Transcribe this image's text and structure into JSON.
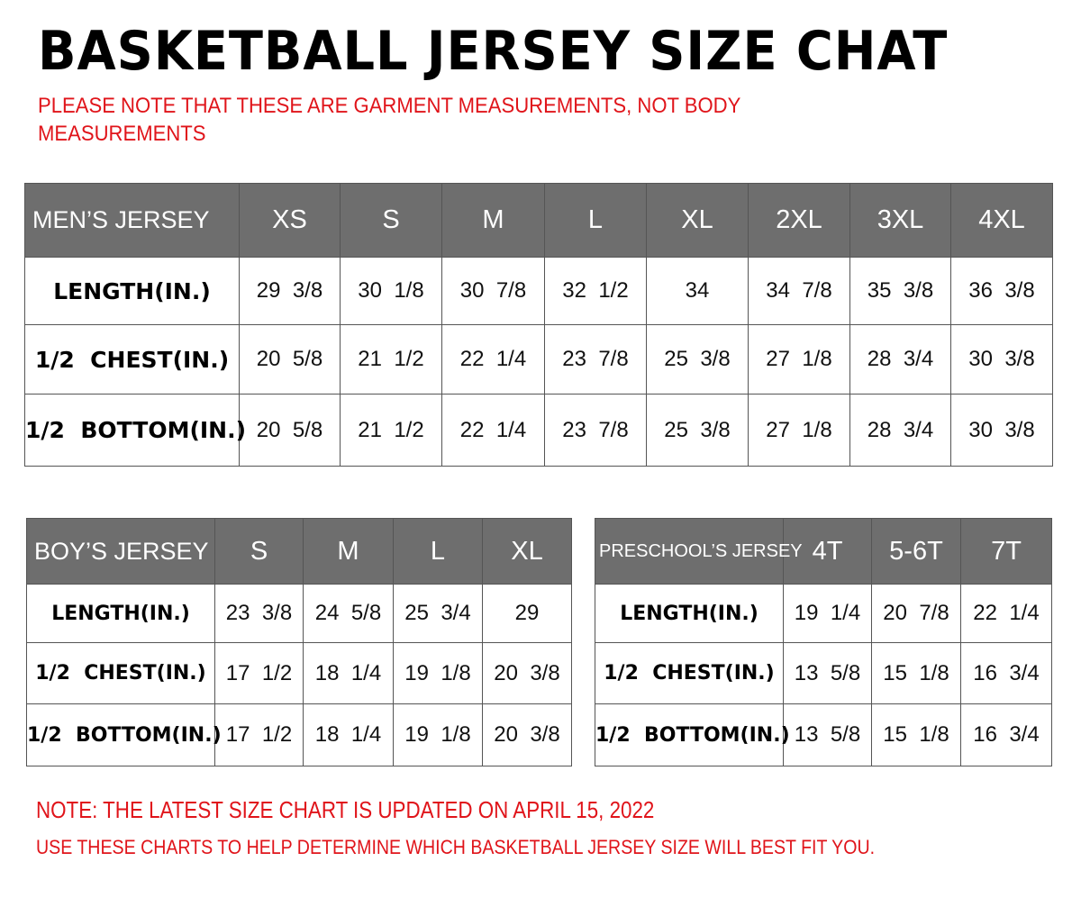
{
  "title": "BASKETBALL JERSEY SIZE CHAT",
  "note": [
    "PLEASE NOTE THAT THESE ARE GARMENT MEASUREMENTS, NOT BODY",
    "MEASUREMENTS"
  ],
  "colors": {
    "header_bg": "#6e6e6e",
    "note_red": "#e0141a"
  },
  "tables": {
    "men": {
      "header": [
        "MEN’S JERSEY",
        "XS",
        "S",
        "M",
        "L",
        "XL",
        "2XL",
        "3XL",
        "4XL"
      ],
      "rows": [
        [
          "LENGTH(IN.)",
          "29  3/8",
          "30  1/8",
          "30  7/8",
          "32  1/2",
          "34",
          "34  7/8",
          "35  3/8",
          "36  3/8"
        ],
        [
          "1/2  CHEST(IN.)",
          "20  5/8",
          "21  1/2",
          "22  1/4",
          "23  7/8",
          "25  3/8",
          "27  1/8",
          "28  3/4",
          "30  3/8"
        ],
        [
          "1/2  BOTTOM(IN.)",
          "20  5/8",
          "21  1/2",
          "22  1/4",
          "23  7/8",
          "25  3/8",
          "27  1/8",
          "28  3/4",
          "30  3/8"
        ]
      ]
    },
    "boy": {
      "header": [
        "BOY’S JERSEY",
        "S",
        "M",
        "L",
        "XL"
      ],
      "rows": [
        [
          "LENGTH(IN.)",
          "23  3/8",
          "24  5/8",
          "25  3/4",
          "29"
        ],
        [
          "1/2  CHEST(IN.)",
          "17  1/2",
          "18  1/4",
          "19  1/8",
          "20  3/8"
        ],
        [
          "1/2  BOTTOM(IN.)",
          "17  1/2",
          "18  1/4",
          "19  1/8",
          "20  3/8"
        ]
      ]
    },
    "pre": {
      "header": [
        "PRESCHOOL’S JERSEY",
        "4T",
        "5-6T",
        "7T"
      ],
      "rows": [
        [
          "LENGTH(IN.)",
          "19  1/4",
          "20  7/8",
          "22  1/4"
        ],
        [
          "1/2  CHEST(IN.)",
          "13  5/8",
          "15  1/8",
          "16  3/4"
        ],
        [
          "1/2  BOTTOM(IN.)",
          "13  5/8",
          "15  1/8",
          "16  3/4"
        ]
      ]
    }
  },
  "footer": [
    "NOTE: THE LATEST SIZE CHART IS UPDATED ON APRIL 15, 2022",
    "USE THESE CHARTS TO HELP DETERMINE WHICH  BASKETBALL JERSEY  SIZE WILL BEST FIT YOU."
  ]
}
